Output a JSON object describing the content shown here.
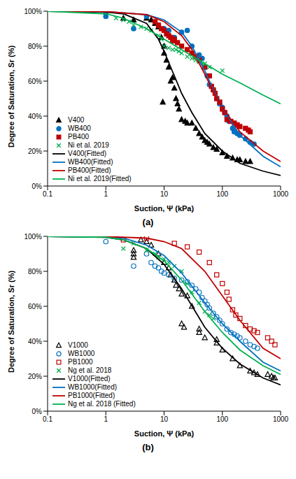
{
  "chart_data": [
    {
      "type": "scatter",
      "title": "(a)",
      "x_label": "Suction, Ψ (kPa)",
      "y_label": "Degree of Saturation, Sr (%)",
      "log": "x",
      "grid": false,
      "legend": "lower left",
      "xlim": [
        0.1,
        1000
      ],
      "xticks": [
        0.1,
        1,
        10,
        100,
        1000
      ],
      "ylim": [
        0,
        100
      ],
      "yticks": [
        {
          "value": 0,
          "label": "0%"
        },
        {
          "value": 20,
          "label": "20%"
        },
        {
          "value": 40,
          "label": "40%"
        },
        {
          "value": 60,
          "label": "60%"
        },
        {
          "value": 80,
          "label": "80%"
        },
        {
          "value": 100,
          "label": "100%"
        }
      ],
      "series": [
        {
          "name": "V400",
          "type": "scatter",
          "marker": "triangle",
          "color": "#000000",
          "x": [
            2,
            3,
            5,
            6,
            7,
            8,
            9,
            9.5,
            10,
            10,
            11,
            12,
            13,
            14,
            15,
            16,
            17,
            18,
            20,
            23,
            25,
            30,
            35,
            40,
            45,
            50,
            55,
            60,
            70,
            80,
            100,
            120,
            150,
            180,
            200,
            250,
            300
          ],
          "values": [
            96,
            95,
            96,
            95,
            93,
            91,
            85,
            48,
            80,
            76,
            72,
            68,
            60,
            62,
            56,
            50,
            47,
            44,
            38,
            37,
            36,
            36,
            33,
            30,
            28,
            26,
            25,
            24,
            22,
            21,
            19,
            17,
            16,
            15,
            15,
            14,
            14
          ]
        },
        {
          "name": "WB400",
          "type": "scatter",
          "marker": "circle",
          "color": "#0070c0",
          "x": [
            1,
            1,
            3,
            5,
            8,
            10,
            12,
            15,
            20,
            25,
            30,
            40,
            45,
            50,
            55,
            60,
            70,
            80,
            90,
            100,
            110,
            120,
            130,
            150,
            160,
            180,
            200,
            250,
            300,
            350
          ],
          "values": [
            99,
            97,
            90,
            97,
            92,
            90,
            89,
            85,
            88,
            89,
            80,
            75,
            73,
            68,
            63,
            58,
            55,
            50,
            47,
            45,
            42,
            40,
            37,
            33,
            31,
            30,
            29,
            27,
            25,
            24
          ]
        },
        {
          "name": "PB400",
          "type": "scatter",
          "marker": "square",
          "color": "#c00000",
          "x": [
            7,
            8,
            9,
            10,
            11,
            12,
            13,
            14,
            15,
            17,
            20,
            25,
            30,
            35,
            40,
            50,
            60,
            65,
            70,
            75,
            80,
            90,
            100,
            110,
            120,
            140,
            160,
            180,
            200,
            250,
            280,
            300
          ],
          "values": [
            94,
            92,
            90,
            89,
            87,
            86,
            85,
            83,
            84,
            82,
            80,
            78,
            76,
            74,
            72,
            68,
            63,
            57,
            55,
            53,
            50,
            48,
            44,
            42,
            38,
            37,
            36,
            35,
            34,
            33,
            32,
            31
          ]
        },
        {
          "name": "Ni et al. 2019",
          "type": "scatter",
          "marker": "x",
          "color": "#00b050",
          "x": [
            1.5,
            2,
            2.5,
            3,
            4,
            5,
            6,
            8,
            9,
            10,
            12,
            14,
            16,
            18,
            20,
            25,
            30,
            35,
            40,
            45,
            50,
            60,
            100
          ],
          "values": [
            96,
            95,
            94,
            92,
            91,
            90,
            89,
            86,
            84,
            80,
            79,
            78,
            78,
            77,
            76,
            74,
            73,
            72,
            71,
            70,
            70,
            68,
            66
          ]
        },
        {
          "name": "V400(Fitted)",
          "type": "line",
          "line_style": "solid",
          "color": "#000000",
          "x": [
            0.1,
            1,
            2,
            5,
            8,
            10,
            15,
            20,
            30,
            50,
            100,
            200,
            500,
            1000
          ],
          "values": [
            100,
            99.5,
            98.5,
            93,
            84,
            77,
            63,
            53,
            42,
            30,
            20,
            13,
            8.5,
            6
          ]
        },
        {
          "name": "WB400(Fitted)",
          "type": "line",
          "line_style": "solid",
          "color": "#0070c0",
          "x": [
            0.1,
            1,
            5,
            10,
            20,
            30,
            50,
            70,
            100,
            200,
            500,
            1000
          ],
          "values": [
            100,
            99.8,
            98,
            95,
            88,
            80,
            66,
            55,
            45,
            29,
            17,
            11
          ]
        },
        {
          "name": "PB400(Fitted)",
          "type": "line",
          "line_style": "solid",
          "color": "#c00000",
          "x": [
            0.1,
            1,
            5,
            10,
            20,
            30,
            50,
            70,
            100,
            200,
            500,
            1000
          ],
          "values": [
            100,
            99.8,
            98,
            94,
            86,
            78,
            64,
            54,
            45,
            31,
            20,
            14
          ]
        },
        {
          "name": "Ni et al. 2019(Fitted)",
          "type": "line",
          "line_style": "solid",
          "color": "#00b050",
          "x": [
            0.1,
            1,
            2,
            5,
            10,
            20,
            50,
            100,
            200,
            500,
            1000
          ],
          "values": [
            100,
            98.5,
            96,
            90,
            84,
            78,
            70,
            64,
            59,
            52,
            47
          ]
        }
      ]
    },
    {
      "type": "scatter",
      "title": "(b)",
      "x_label": "Suction, Ψ (kPa)",
      "y_label": "Degree of Saturation, Sr (%)",
      "log": "x",
      "grid": false,
      "legend": "lower left",
      "xlim": [
        0.1,
        1000
      ],
      "xticks": [
        0.1,
        1,
        10,
        100,
        1000
      ],
      "ylim": [
        0,
        100
      ],
      "yticks": [
        {
          "value": 0,
          "label": "0%"
        },
        {
          "value": 20,
          "label": "20%"
        },
        {
          "value": 40,
          "label": "40%"
        },
        {
          "value": 60,
          "label": "60%"
        },
        {
          "value": 80,
          "label": "80%"
        },
        {
          "value": 100,
          "label": "100%"
        }
      ],
      "series": [
        {
          "name": "V1000",
          "type": "scatter",
          "marker": "open_triangle",
          "color": "#000000",
          "x": [
            3,
            3,
            3,
            4,
            5,
            6,
            8,
            10,
            12,
            13,
            15,
            16,
            18,
            20,
            20,
            22,
            25,
            30,
            40,
            40,
            50,
            80,
            80,
            100,
            150,
            200,
            300,
            350,
            400,
            600,
            700,
            750,
            800
          ],
          "values": [
            92,
            90,
            88,
            98,
            97,
            95,
            90,
            85,
            82,
            78,
            75,
            72,
            70,
            67,
            50,
            48,
            66,
            60,
            47,
            45,
            42,
            39,
            41,
            35,
            30,
            26,
            23,
            22,
            21,
            21,
            20,
            19,
            19
          ]
        },
        {
          "name": "WB1000",
          "type": "scatter",
          "marker": "open_circle",
          "color": "#0070c0",
          "x": [
            1,
            3,
            5,
            6,
            7,
            8,
            9,
            10,
            12,
            15,
            20,
            25,
            30,
            35,
            40,
            45,
            50,
            55,
            60,
            70,
            80,
            90,
            100,
            120,
            140,
            160,
            180,
            200,
            250,
            300,
            350,
            400
          ],
          "values": [
            97,
            83,
            90,
            85,
            83,
            82,
            80,
            79,
            78,
            76,
            75,
            74,
            72,
            70,
            68,
            65,
            63,
            61,
            59,
            56,
            54,
            52,
            50,
            47,
            45,
            44,
            43,
            42,
            40,
            38,
            37,
            36
          ]
        },
        {
          "name": "PB1000",
          "type": "scatter",
          "marker": "open_square",
          "color": "#c00000",
          "x": [
            2,
            5,
            15,
            25,
            40,
            60,
            80,
            100,
            120,
            130,
            150,
            170,
            200,
            250,
            300,
            350,
            400,
            600,
            700,
            800
          ],
          "values": [
            98,
            99,
            96,
            94,
            91,
            85,
            78,
            73,
            68,
            64,
            58,
            55,
            53,
            49,
            47,
            46,
            45,
            42,
            40,
            38
          ]
        },
        {
          "name": "Ng et al. 2018",
          "type": "scatter",
          "marker": "x",
          "color": "#00b050",
          "x": [
            2,
            3,
            5,
            7,
            8,
            10,
            12,
            15,
            20,
            25,
            30,
            40,
            50,
            60,
            70
          ],
          "values": [
            93,
            96,
            92,
            90,
            88,
            87,
            85,
            83,
            80,
            73,
            68,
            62,
            57,
            55,
            53
          ]
        },
        {
          "name": "V1000(Fitted)",
          "type": "line",
          "line_style": "solid",
          "color": "#000000",
          "x": [
            0.1,
            1,
            2,
            5,
            10,
            20,
            50,
            100,
            200,
            500,
            1000
          ],
          "values": [
            100,
            99.5,
            98,
            93,
            84,
            70,
            48,
            36,
            27,
            19,
            15
          ]
        },
        {
          "name": "WB1000(Fitted)",
          "type": "line",
          "line_style": "solid",
          "color": "#0070c0",
          "x": [
            0.1,
            1,
            2,
            5,
            10,
            20,
            50,
            100,
            200,
            500,
            1000
          ],
          "values": [
            100,
            99.6,
            99,
            95,
            89,
            79,
            62,
            50,
            40,
            28,
            23
          ]
        },
        {
          "name": "PB1000(Fitted)",
          "type": "line",
          "line_style": "solid",
          "color": "#c00000",
          "x": [
            0.1,
            1,
            5,
            10,
            20,
            50,
            100,
            200,
            500,
            1000
          ],
          "values": [
            100,
            99.9,
            99,
            97,
            93,
            80,
            66,
            52,
            36,
            30
          ]
        },
        {
          "name": "Ng et al. 2018 (Fitted)",
          "type": "line",
          "line_style": "solid",
          "color": "#00b050",
          "x": [
            0.1,
            1,
            2,
            5,
            10,
            20,
            50,
            100,
            200,
            500,
            1000
          ],
          "values": [
            100,
            99.5,
            98,
            93,
            86,
            75,
            57,
            45,
            35,
            26,
            21
          ]
        }
      ]
    }
  ]
}
